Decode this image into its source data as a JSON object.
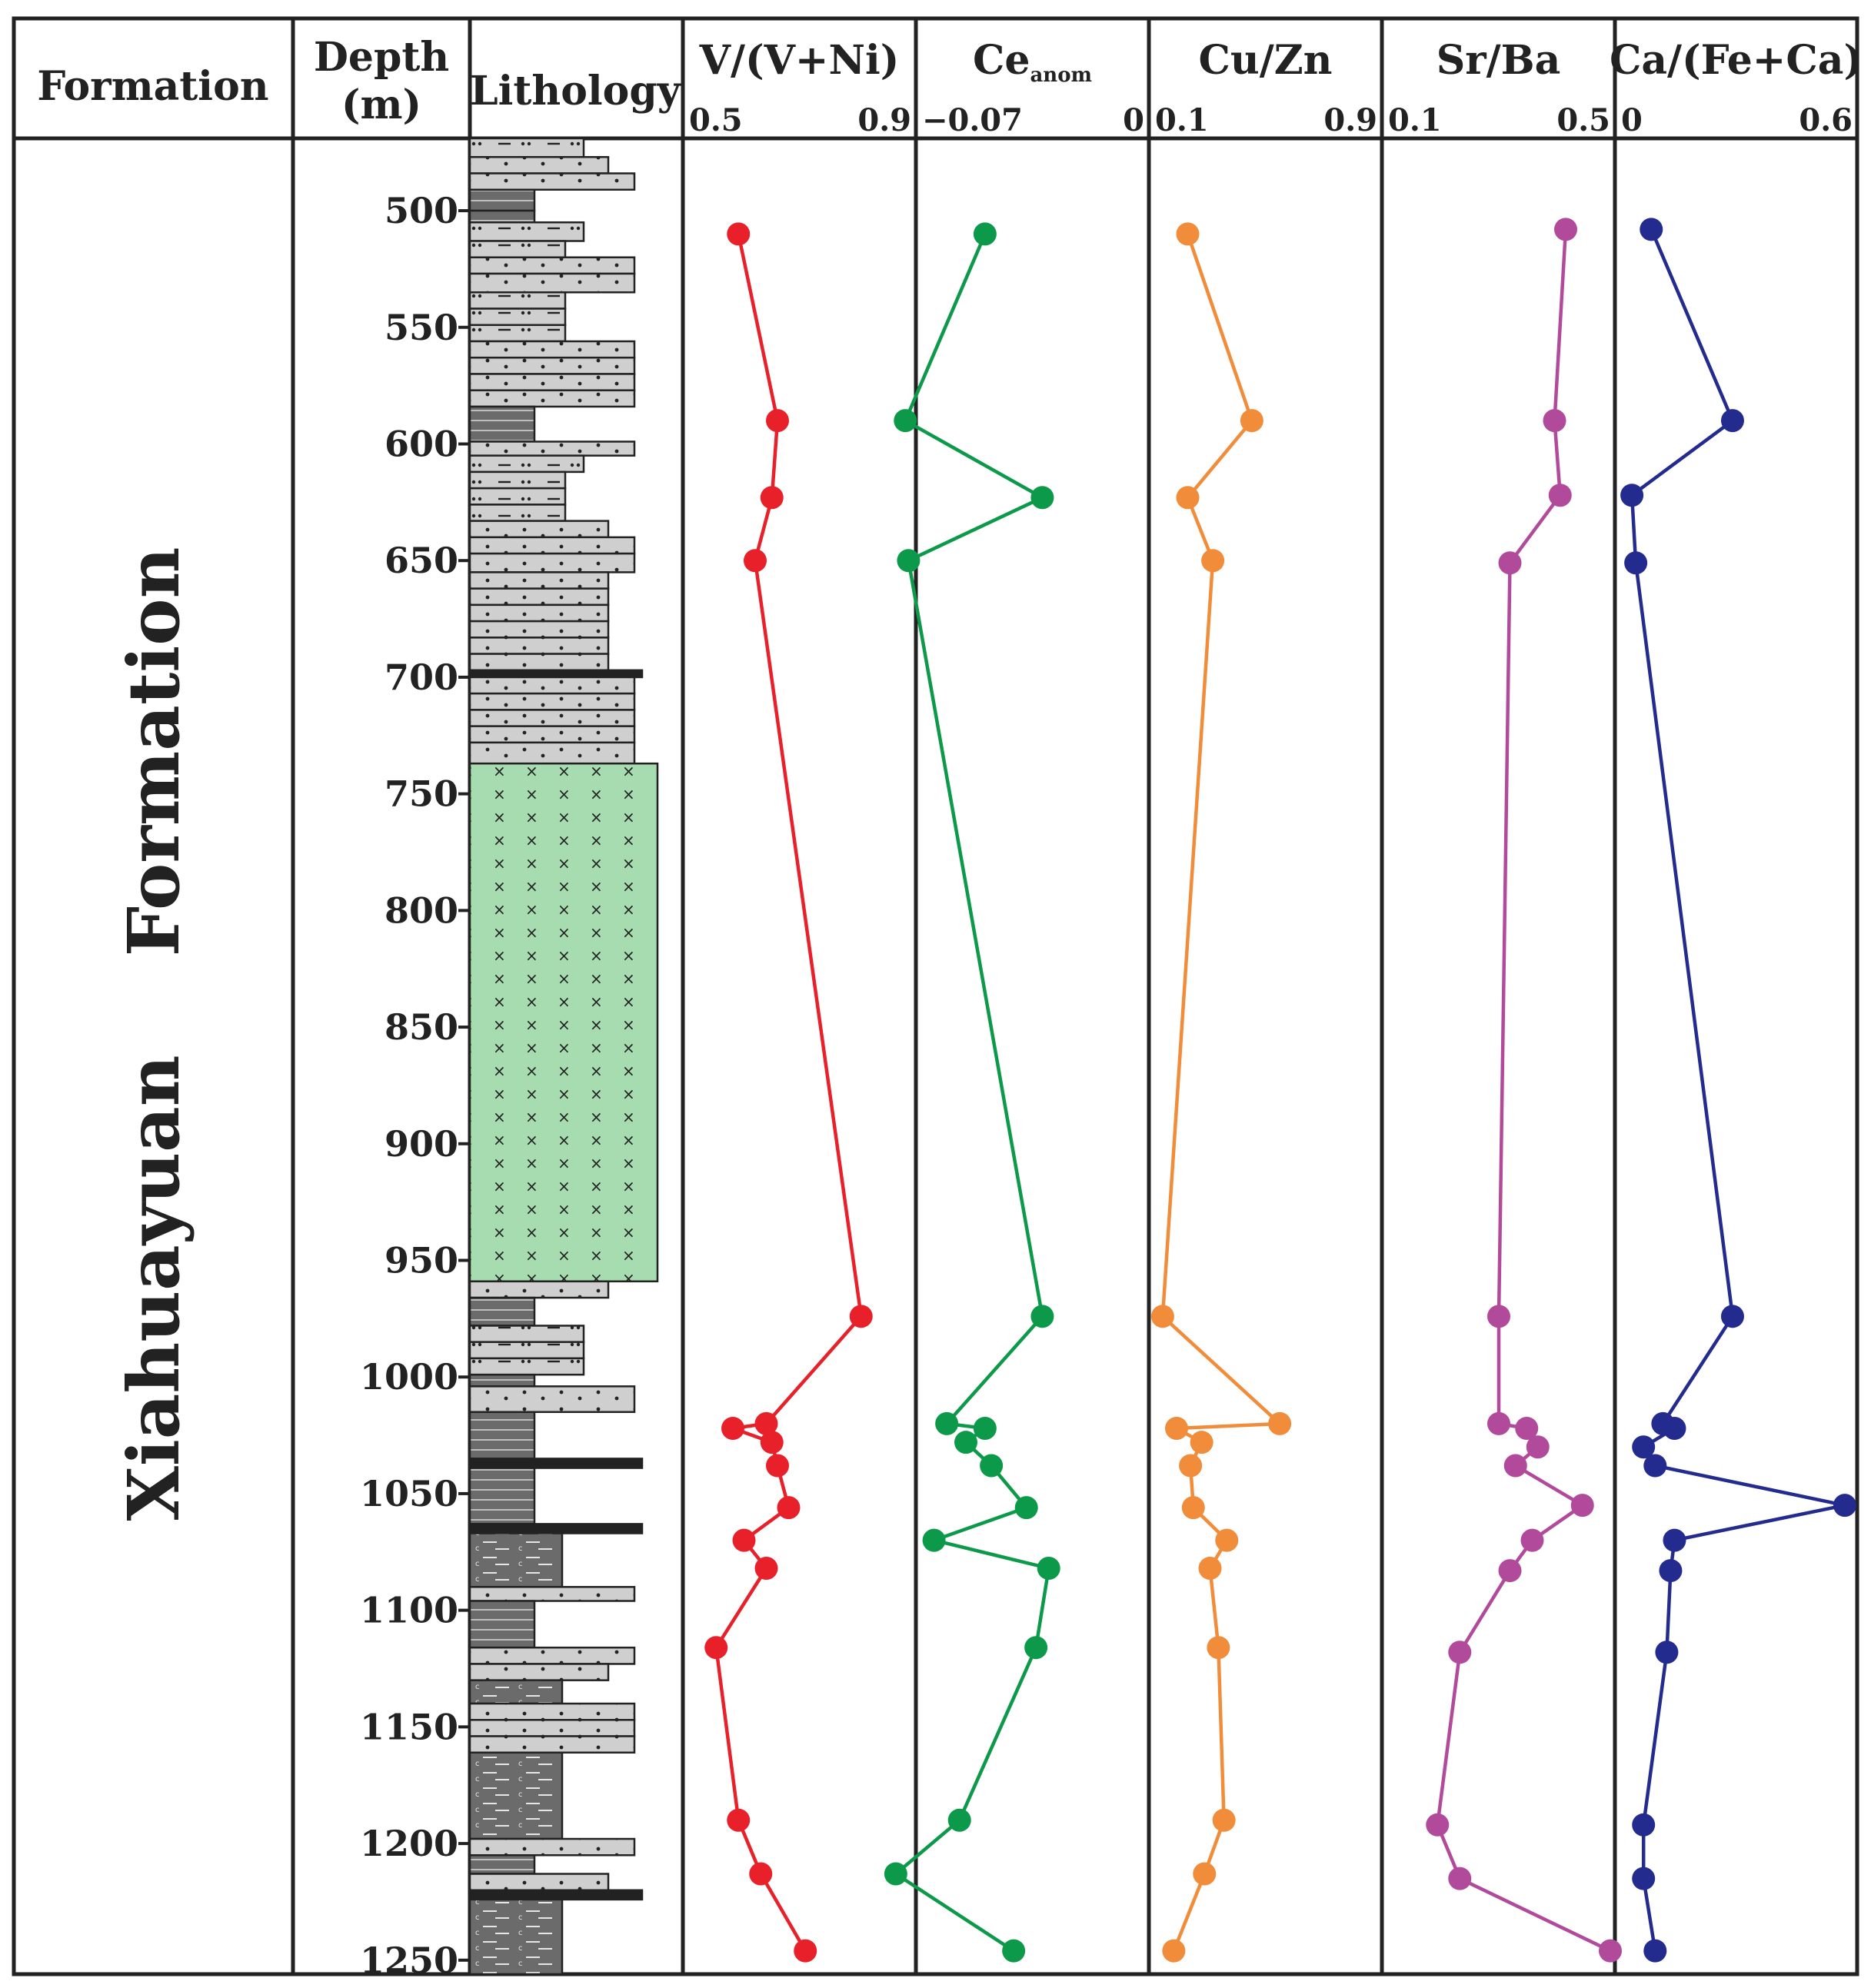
{
  "chart_data": {
    "type": "line",
    "orientation": "vertical-depth-profile",
    "formation_header": "Formation",
    "formation_name": "Xiahuayuan    Formation",
    "depth_header_line1": "Depth",
    "depth_header_line2": "(m)",
    "lithology_header": "Lithology",
    "depth_axis": {
      "ticks": [
        500,
        550,
        600,
        650,
        700,
        750,
        800,
        850,
        900,
        950,
        1000,
        1050,
        1100,
        1150,
        1200,
        1250
      ],
      "tick_labels": [
        "500",
        "550",
        "600",
        "650",
        "700",
        "750",
        "800",
        "850",
        "900",
        "950",
        "1000",
        "1050",
        "1100",
        "1150",
        "1200",
        "1250"
      ],
      "range": [
        469,
        1256
      ]
    },
    "series": [
      {
        "name": "V/(V+Ni)",
        "xlim": [
          0.5,
          0.9
        ],
        "tick_min": "0.5",
        "tick_max": "0.9",
        "color": "#e8202a",
        "points": [
          [
            0.59,
            510
          ],
          [
            0.66,
            590
          ],
          [
            0.65,
            623
          ],
          [
            0.62,
            650
          ],
          [
            0.81,
            974
          ],
          [
            0.64,
            1020
          ],
          [
            0.58,
            1022
          ],
          [
            0.65,
            1028
          ],
          [
            0.66,
            1038
          ],
          [
            0.68,
            1056
          ],
          [
            0.6,
            1070
          ],
          [
            0.64,
            1082
          ],
          [
            0.55,
            1116
          ],
          [
            0.59,
            1190
          ],
          [
            0.63,
            1213
          ],
          [
            0.71,
            1246
          ]
        ]
      },
      {
        "name": "Ce",
        "name_sub": "anom",
        "xlim": [
          -0.07,
          0
        ],
        "tick_min": "−0.07",
        "tick_max": "0",
        "color": "#0c9a4a",
        "points": [
          [
            -0.05,
            510
          ],
          [
            -0.075,
            590
          ],
          [
            -0.032,
            623
          ],
          [
            -0.074,
            650
          ],
          [
            -0.032,
            974
          ],
          [
            -0.062,
            1020
          ],
          [
            -0.05,
            1022
          ],
          [
            -0.056,
            1028
          ],
          [
            -0.048,
            1038
          ],
          [
            -0.037,
            1056
          ],
          [
            -0.066,
            1070
          ],
          [
            -0.03,
            1082
          ],
          [
            -0.034,
            1116
          ],
          [
            -0.058,
            1190
          ],
          [
            -0.078,
            1213
          ],
          [
            -0.041,
            1246
          ]
        ]
      },
      {
        "name": "Cu/Zn",
        "xlim": [
          0.1,
          0.9
        ],
        "tick_min": "0.1",
        "tick_max": "0.9",
        "color": "#f08c3a",
        "points": [
          [
            0.22,
            510
          ],
          [
            0.45,
            590
          ],
          [
            0.22,
            623
          ],
          [
            0.31,
            650
          ],
          [
            0.13,
            974
          ],
          [
            0.55,
            1020
          ],
          [
            0.18,
            1022
          ],
          [
            0.27,
            1028
          ],
          [
            0.23,
            1038
          ],
          [
            0.24,
            1056
          ],
          [
            0.36,
            1070
          ],
          [
            0.3,
            1082
          ],
          [
            0.33,
            1116
          ],
          [
            0.35,
            1190
          ],
          [
            0.28,
            1213
          ],
          [
            0.17,
            1246
          ]
        ]
      },
      {
        "name": "Sr/Ba",
        "xlim": [
          0.1,
          0.5
        ],
        "tick_min": "0.1",
        "tick_max": "0.5",
        "color": "#b24a9c",
        "points": [
          [
            0.42,
            508
          ],
          [
            0.4,
            590
          ],
          [
            0.41,
            622
          ],
          [
            0.32,
            651
          ],
          [
            0.3,
            974
          ],
          [
            0.3,
            1020
          ],
          [
            0.35,
            1022
          ],
          [
            0.37,
            1030
          ],
          [
            0.33,
            1038
          ],
          [
            0.45,
            1055
          ],
          [
            0.36,
            1070
          ],
          [
            0.32,
            1083
          ],
          [
            0.23,
            1118
          ],
          [
            0.19,
            1192
          ],
          [
            0.23,
            1215
          ],
          [
            0.5,
            1246
          ]
        ]
      },
      {
        "name": "Ca/(Fe+Ca)",
        "xlim": [
          0,
          0.6
        ],
        "tick_min": "0",
        "tick_max": "0.6",
        "color": "#232b8e",
        "points": [
          [
            0.08,
            508
          ],
          [
            0.29,
            590
          ],
          [
            0.03,
            622
          ],
          [
            0.04,
            651
          ],
          [
            0.29,
            974
          ],
          [
            0.11,
            1020
          ],
          [
            0.14,
            1022
          ],
          [
            0.06,
            1030
          ],
          [
            0.09,
            1038
          ],
          [
            0.58,
            1055
          ],
          [
            0.14,
            1070
          ],
          [
            0.13,
            1083
          ],
          [
            0.12,
            1118
          ],
          [
            0.06,
            1192
          ],
          [
            0.06,
            1215
          ],
          [
            0.09,
            1246
          ]
        ]
      }
    ],
    "lithology_layers": [
      {
        "top": 469,
        "bottom": 477,
        "type": "siltstone"
      },
      {
        "top": 477,
        "bottom": 484,
        "type": "sandstone"
      },
      {
        "top": 484,
        "bottom": 491,
        "type": "sandstone-wide"
      },
      {
        "top": 491,
        "bottom": 500,
        "type": "mudstone"
      },
      {
        "top": 500,
        "bottom": 505,
        "type": "mudstone"
      },
      {
        "top": 505,
        "bottom": 513,
        "type": "siltstone"
      },
      {
        "top": 513,
        "bottom": 520,
        "type": "siltstone-narrow"
      },
      {
        "top": 520,
        "bottom": 527,
        "type": "sandstone-wide"
      },
      {
        "top": 527,
        "bottom": 535,
        "type": "sandstone-wide"
      },
      {
        "top": 535,
        "bottom": 542,
        "type": "siltstone-narrow"
      },
      {
        "top": 542,
        "bottom": 549,
        "type": "siltstone-narrow"
      },
      {
        "top": 549,
        "bottom": 556,
        "type": "siltstone-narrow"
      },
      {
        "top": 556,
        "bottom": 563,
        "type": "sandstone-wide"
      },
      {
        "top": 563,
        "bottom": 570,
        "type": "sandstone-wide"
      },
      {
        "top": 570,
        "bottom": 577,
        "type": "sandstone-wide"
      },
      {
        "top": 577,
        "bottom": 584,
        "type": "sandstone-wide"
      },
      {
        "top": 584,
        "bottom": 599,
        "type": "mudstone"
      },
      {
        "top": 599,
        "bottom": 605,
        "type": "sandstone-wide"
      },
      {
        "top": 605,
        "bottom": 612,
        "type": "siltstone"
      },
      {
        "top": 612,
        "bottom": 619,
        "type": "siltstone-narrow"
      },
      {
        "top": 619,
        "bottom": 626,
        "type": "siltstone-narrow"
      },
      {
        "top": 626,
        "bottom": 633,
        "type": "siltstone-narrow"
      },
      {
        "top": 633,
        "bottom": 640,
        "type": "sandstone"
      },
      {
        "top": 640,
        "bottom": 647,
        "type": "sandstone-wide"
      },
      {
        "top": 647,
        "bottom": 655,
        "type": "sandstone-wide"
      },
      {
        "top": 655,
        "bottom": 662,
        "type": "sandstone"
      },
      {
        "top": 662,
        "bottom": 669,
        "type": "sandstone"
      },
      {
        "top": 669,
        "bottom": 676,
        "type": "sandstone"
      },
      {
        "top": 676,
        "bottom": 683,
        "type": "sandstone"
      },
      {
        "top": 683,
        "bottom": 690,
        "type": "sandstone"
      },
      {
        "top": 690,
        "bottom": 697,
        "type": "sandstone"
      },
      {
        "top": 697,
        "bottom": 700,
        "type": "coal"
      },
      {
        "top": 700,
        "bottom": 707,
        "type": "sandstone-wide"
      },
      {
        "top": 707,
        "bottom": 714,
        "type": "sandstone-wide"
      },
      {
        "top": 714,
        "bottom": 721,
        "type": "sandstone-wide"
      },
      {
        "top": 721,
        "bottom": 728,
        "type": "sandstone-wide"
      },
      {
        "top": 728,
        "bottom": 737,
        "type": "sandstone-wide"
      },
      {
        "top": 737,
        "bottom": 959,
        "type": "volcanic"
      },
      {
        "top": 959,
        "bottom": 966,
        "type": "sandstone"
      },
      {
        "top": 966,
        "bottom": 978,
        "type": "mudstone"
      },
      {
        "top": 978,
        "bottom": 985,
        "type": "siltstone"
      },
      {
        "top": 985,
        "bottom": 992,
        "type": "siltstone"
      },
      {
        "top": 992,
        "bottom": 999,
        "type": "siltstone"
      },
      {
        "top": 999,
        "bottom": 1004,
        "type": "mudstone"
      },
      {
        "top": 1004,
        "bottom": 1015,
        "type": "sandstone-wide"
      },
      {
        "top": 1015,
        "bottom": 1035,
        "type": "mudstone"
      },
      {
        "top": 1035,
        "bottom": 1039,
        "type": "coal"
      },
      {
        "top": 1039,
        "bottom": 1063,
        "type": "mudstone"
      },
      {
        "top": 1063,
        "bottom": 1067,
        "type": "coal"
      },
      {
        "top": 1067,
        "bottom": 1090,
        "type": "carbshale"
      },
      {
        "top": 1090,
        "bottom": 1096,
        "type": "sandstone-wide"
      },
      {
        "top": 1096,
        "bottom": 1116,
        "type": "mudstone"
      },
      {
        "top": 1116,
        "bottom": 1123,
        "type": "sandstone-wide"
      },
      {
        "top": 1123,
        "bottom": 1130,
        "type": "sandstone"
      },
      {
        "top": 1130,
        "bottom": 1140,
        "type": "carbshale"
      },
      {
        "top": 1140,
        "bottom": 1147,
        "type": "sandstone-wide"
      },
      {
        "top": 1147,
        "bottom": 1154,
        "type": "sandstone-wide"
      },
      {
        "top": 1154,
        "bottom": 1161,
        "type": "sandstone-wide"
      },
      {
        "top": 1161,
        "bottom": 1198,
        "type": "carbshale"
      },
      {
        "top": 1198,
        "bottom": 1205,
        "type": "sandstone-wide"
      },
      {
        "top": 1205,
        "bottom": 1213,
        "type": "mudstone"
      },
      {
        "top": 1213,
        "bottom": 1220,
        "type": "sandstone"
      },
      {
        "top": 1220,
        "bottom": 1224,
        "type": "coal"
      },
      {
        "top": 1224,
        "bottom": 1256,
        "type": "carbshale"
      }
    ],
    "colors": {
      "sandstone": "#cfcfcf",
      "mudstone": "#6b6b6b",
      "volcanic": "#a6dcb0",
      "coal": "#222222",
      "frame": "#222222"
    }
  }
}
